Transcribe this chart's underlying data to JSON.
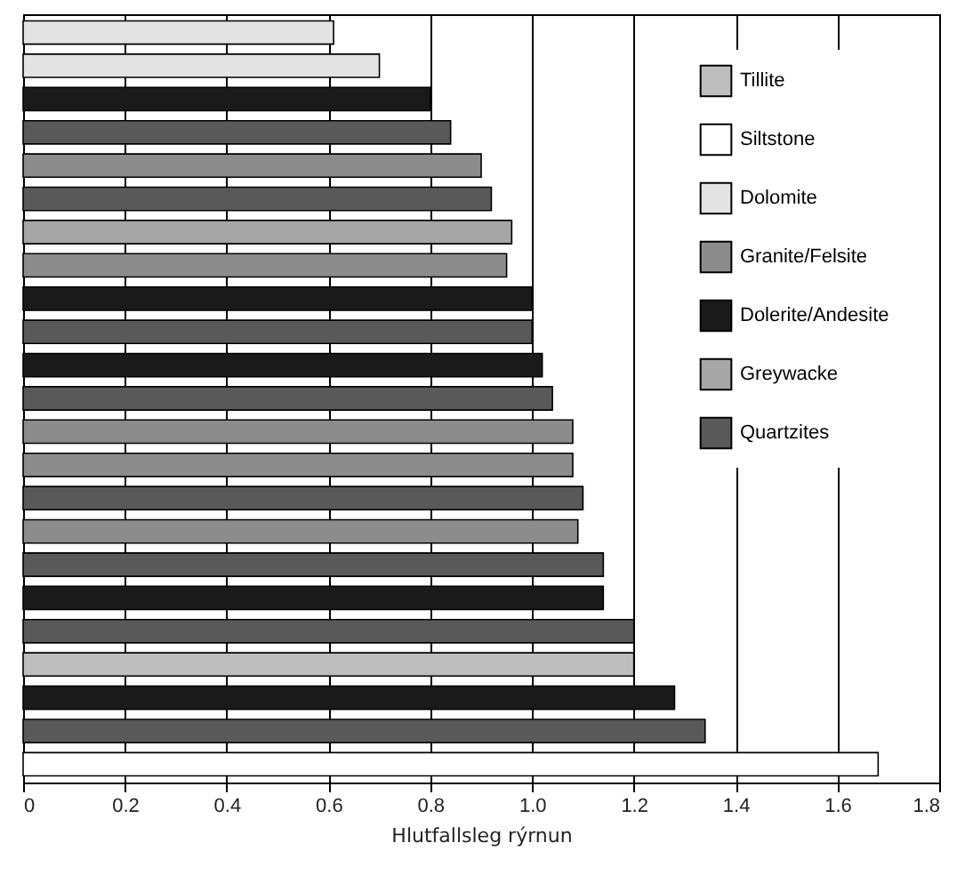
{
  "chart_data": {
    "type": "bar",
    "orientation": "horizontal",
    "xlabel": "Hlutfallsleg rýrnun",
    "categories": [
      null,
      null,
      null,
      null,
      null,
      null,
      null,
      null,
      null,
      null,
      null,
      null,
      null,
      null,
      null,
      null,
      null,
      null,
      null,
      null,
      null,
      null,
      null
    ],
    "series": [
      {
        "name": "Tillite",
        "color": "#bdbdbd",
        "values": [
          null,
          null,
          null,
          null,
          null,
          null,
          null,
          null,
          null,
          null,
          null,
          null,
          null,
          null,
          null,
          null,
          null,
          null,
          null,
          1.2,
          null,
          null,
          null
        ]
      },
      {
        "name": "Siltstone",
        "color": "#ffffff",
        "values": [
          null,
          null,
          null,
          null,
          null,
          null,
          null,
          null,
          null,
          null,
          null,
          null,
          null,
          null,
          null,
          null,
          null,
          null,
          null,
          null,
          null,
          null,
          1.68
        ]
      },
      {
        "name": "Dolomite",
        "color": "#e3e3e3",
        "values": [
          0.61,
          0.7,
          null,
          null,
          null,
          null,
          null,
          null,
          null,
          null,
          null,
          null,
          null,
          null,
          null,
          null,
          null,
          null,
          null,
          null,
          null,
          null,
          null
        ]
      },
      {
        "name": "Granite/Felsite",
        "color": "#8c8c8c",
        "values": [
          null,
          null,
          null,
          null,
          0.9,
          null,
          null,
          0.95,
          null,
          null,
          null,
          null,
          1.08,
          1.08,
          null,
          1.09,
          null,
          null,
          null,
          null,
          null,
          null,
          null
        ]
      },
      {
        "name": "Dolerite/Andesite",
        "color": "#1a1a1a",
        "values": [
          null,
          null,
          0.8,
          null,
          null,
          null,
          null,
          null,
          1.0,
          null,
          1.02,
          null,
          null,
          null,
          null,
          null,
          null,
          1.14,
          null,
          null,
          1.28,
          null,
          null
        ]
      },
      {
        "name": "Greywacke",
        "color": "#a6a6a6",
        "values": [
          null,
          null,
          null,
          null,
          null,
          null,
          0.96,
          null,
          null,
          null,
          null,
          null,
          null,
          null,
          null,
          null,
          null,
          null,
          null,
          null,
          null,
          null,
          null
        ]
      },
      {
        "name": "Quartzites",
        "color": "#595959",
        "values": [
          null,
          null,
          null,
          0.84,
          null,
          0.92,
          null,
          null,
          null,
          1.0,
          null,
          1.04,
          null,
          null,
          1.1,
          null,
          1.14,
          null,
          1.2,
          null,
          null,
          1.34,
          null
        ]
      }
    ],
    "xlim": [
      0,
      1.8
    ],
    "xticks": [
      0,
      0.2,
      0.4,
      0.6,
      0.8,
      {
        "value": 1,
        "label": "1.0"
      },
      1.2,
      1.4,
      1.6,
      1.8
    ],
    "grid": "x",
    "legend": "top right",
    "tick_labels": "x"
  }
}
